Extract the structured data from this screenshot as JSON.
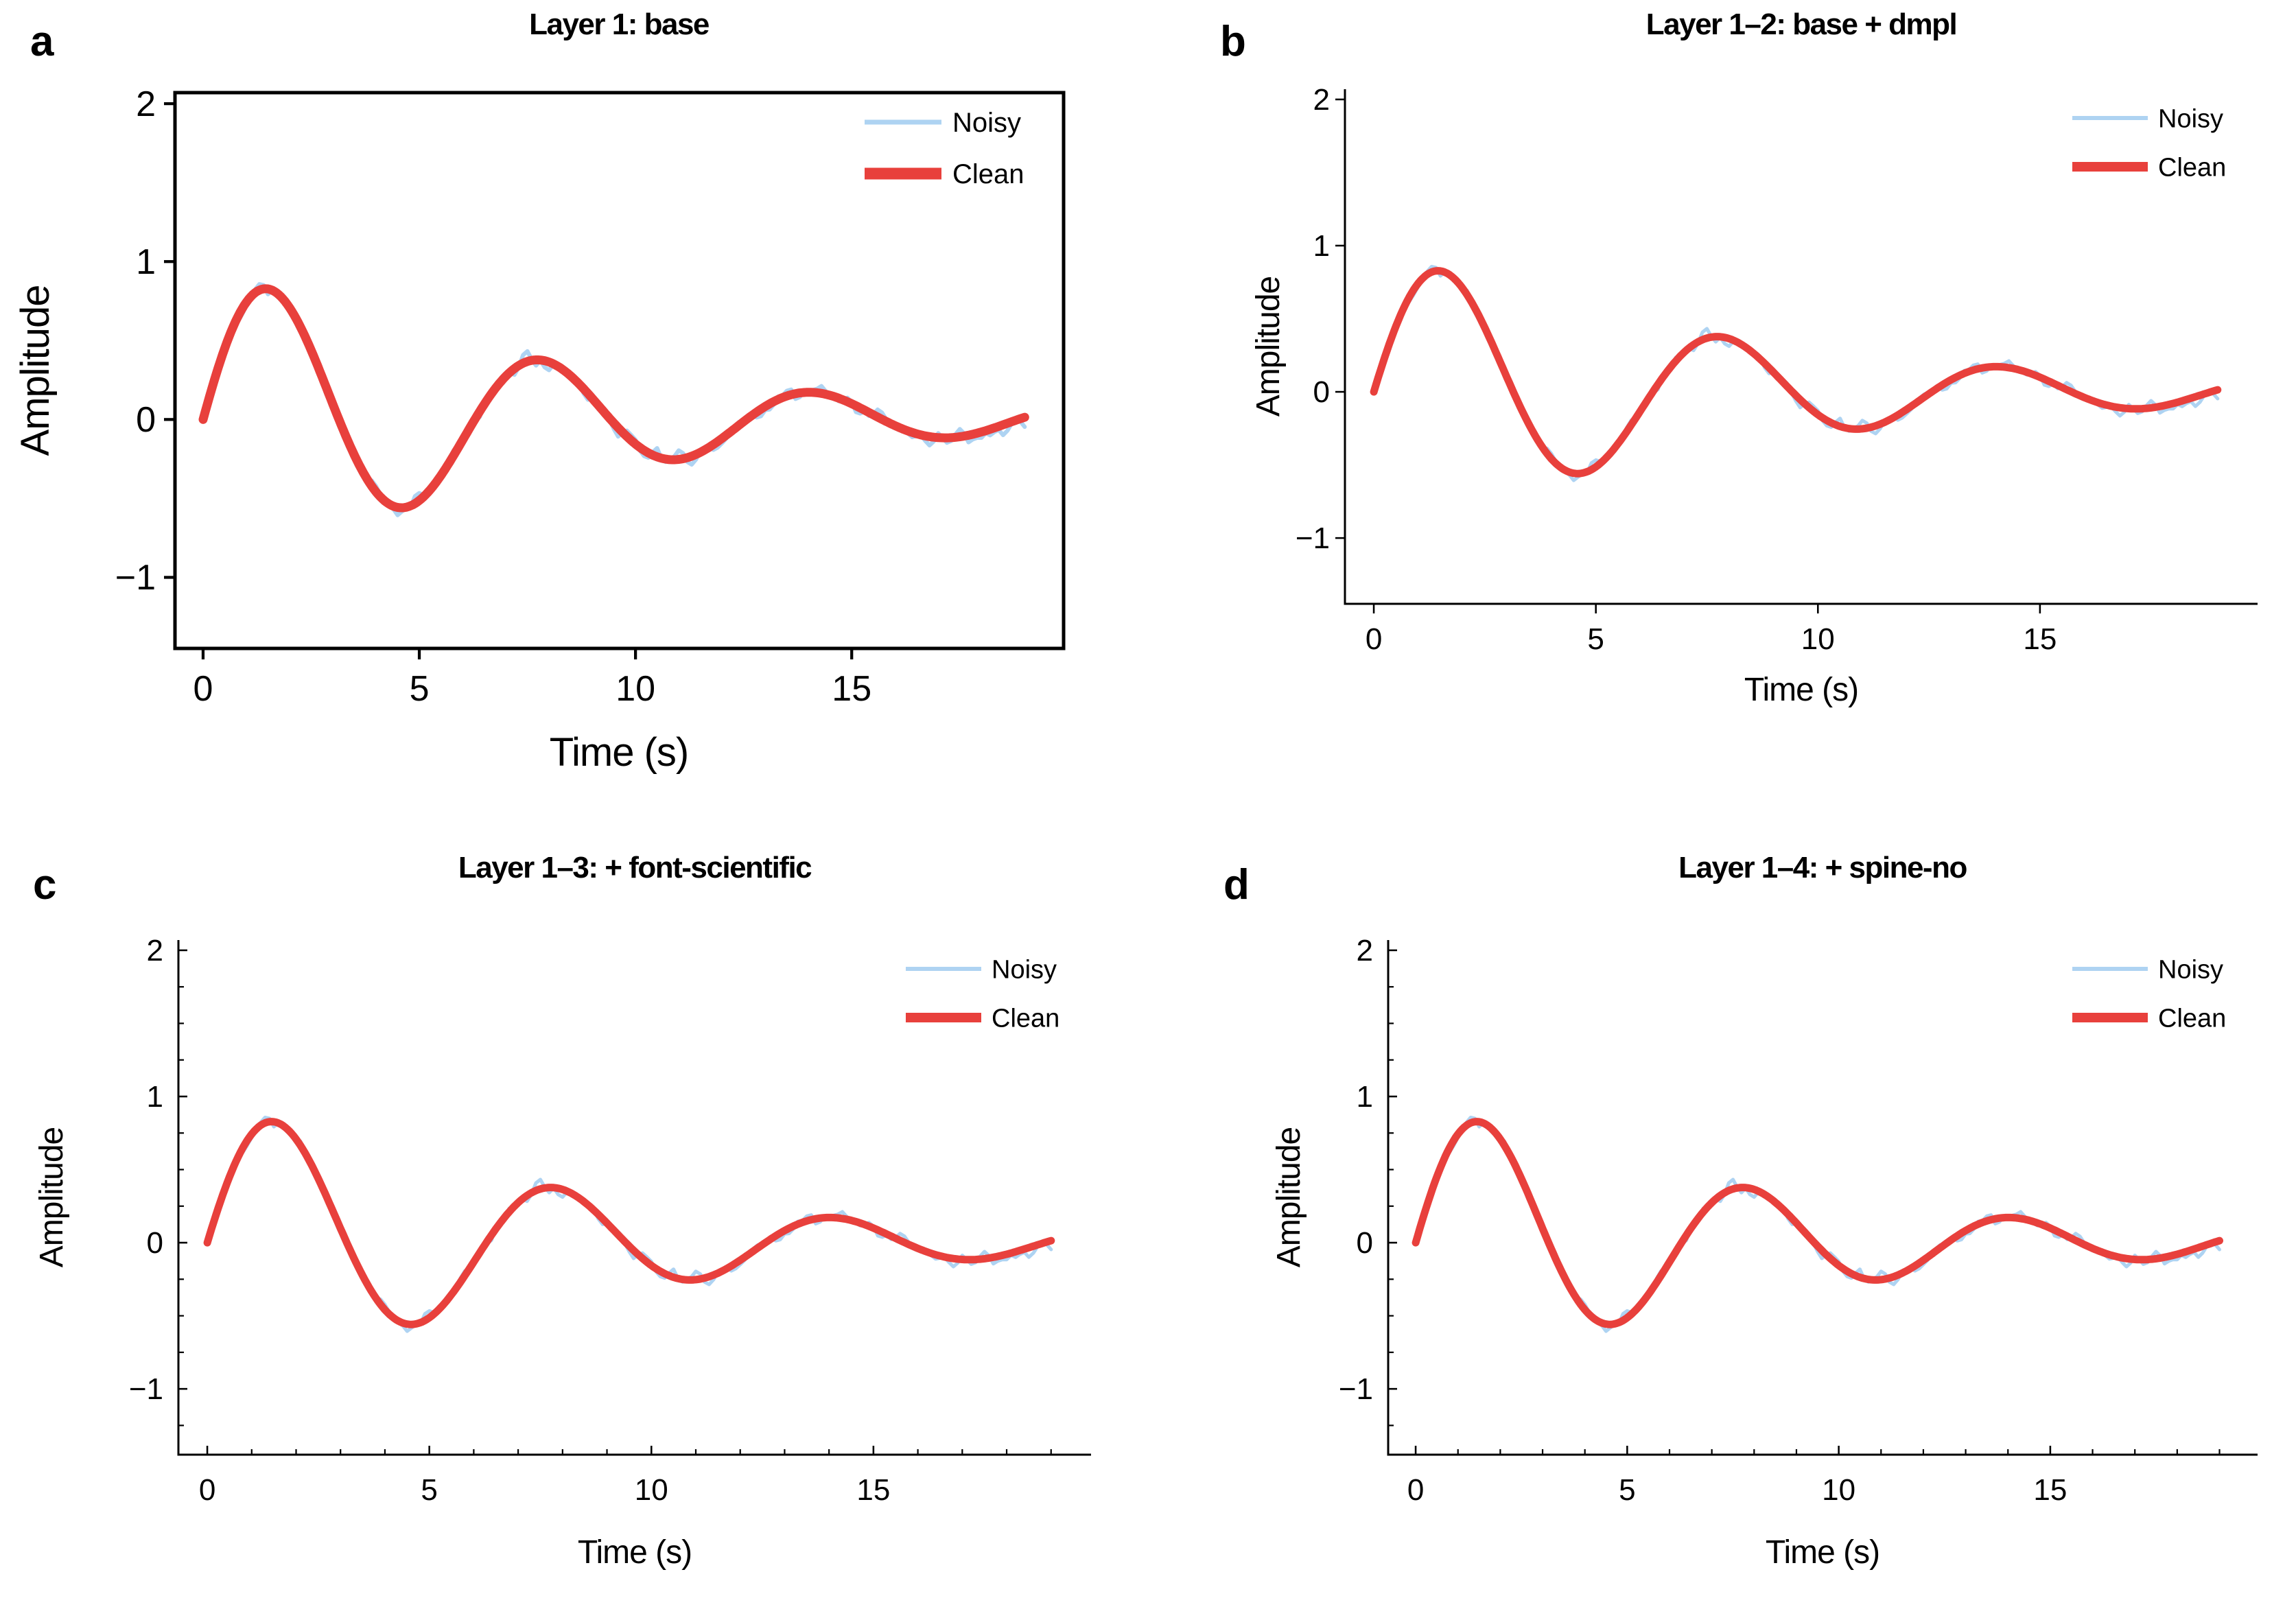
{
  "figure": {
    "background": "#ffffff",
    "description": "2x2 grid of panels comparing cumulative plotting style layers on the same damped sine signal"
  },
  "chart_data": {
    "type": "line",
    "shared": {
      "xlabel": "Time (s)",
      "ylabel": "Amplitude",
      "xlim": [
        -0.65,
        19.9
      ],
      "ylim": [
        -1.45,
        2.07
      ],
      "xticks": [
        0,
        5,
        10,
        15
      ],
      "xticklabels": [
        "0",
        "5",
        "10",
        "15"
      ],
      "yticks": [
        2,
        1,
        0,
        -1
      ],
      "yticklabels": [
        "2",
        "1",
        "0",
        "−1"
      ],
      "x_minor_step": 1,
      "y_minor_step": 0.25,
      "grid": false,
      "legend": {
        "position": "upper right",
        "frame": false
      },
      "series": [
        {
          "name": "Noisy",
          "color": "#aed3f2",
          "role": "noisy"
        },
        {
          "name": "Clean",
          "color": "#e8403c",
          "role": "clean"
        }
      ],
      "signal": {
        "formula": "y = exp(-t/8) * sin(t)",
        "t_min": 0,
        "t_max": 19,
        "decay_tau": 8,
        "omega": 1,
        "noise_sigma": 0.03,
        "clean_step": 0.05,
        "noisy_step": 0.1,
        "noise_seed": 11
      },
      "key_points": {
        "clean_extrema": [
          [
            1.45,
            0.83
          ],
          [
            4.59,
            -0.56
          ],
          [
            7.73,
            0.38
          ],
          [
            10.87,
            -0.26
          ],
          [
            14.01,
            0.17
          ],
          [
            17.15,
            -0.12
          ]
        ],
        "endpoints": [
          [
            0,
            0.0
          ],
          [
            19,
            0.02
          ]
        ]
      }
    },
    "panels": [
      {
        "id": "a",
        "label": "a",
        "title": "Layer 1: base",
        "spines": "box",
        "tick_direction": "out",
        "minor_ticks": false,
        "spine_width": 5,
        "clean_lw": 13,
        "noisy_lw": 6
      },
      {
        "id": "b",
        "label": "b",
        "title": "Layer 1–2: base + dmpl",
        "spines": "left-bottom",
        "tick_direction": "out",
        "minor_ticks": false,
        "spine_width": 3,
        "clean_lw": 11,
        "noisy_lw": 5
      },
      {
        "id": "c",
        "label": "c",
        "title": "Layer 1–3: + font-scientific",
        "spines": "left-bottom",
        "tick_direction": "in",
        "minor_ticks": true,
        "spine_width": 3,
        "clean_lw": 11,
        "noisy_lw": 5
      },
      {
        "id": "d",
        "label": "d",
        "title": "Layer 1–4: + spine-no",
        "spines": "left-bottom",
        "tick_direction": "in",
        "minor_ticks": true,
        "spine_width": 3,
        "clean_lw": 11,
        "noisy_lw": 5
      }
    ]
  }
}
